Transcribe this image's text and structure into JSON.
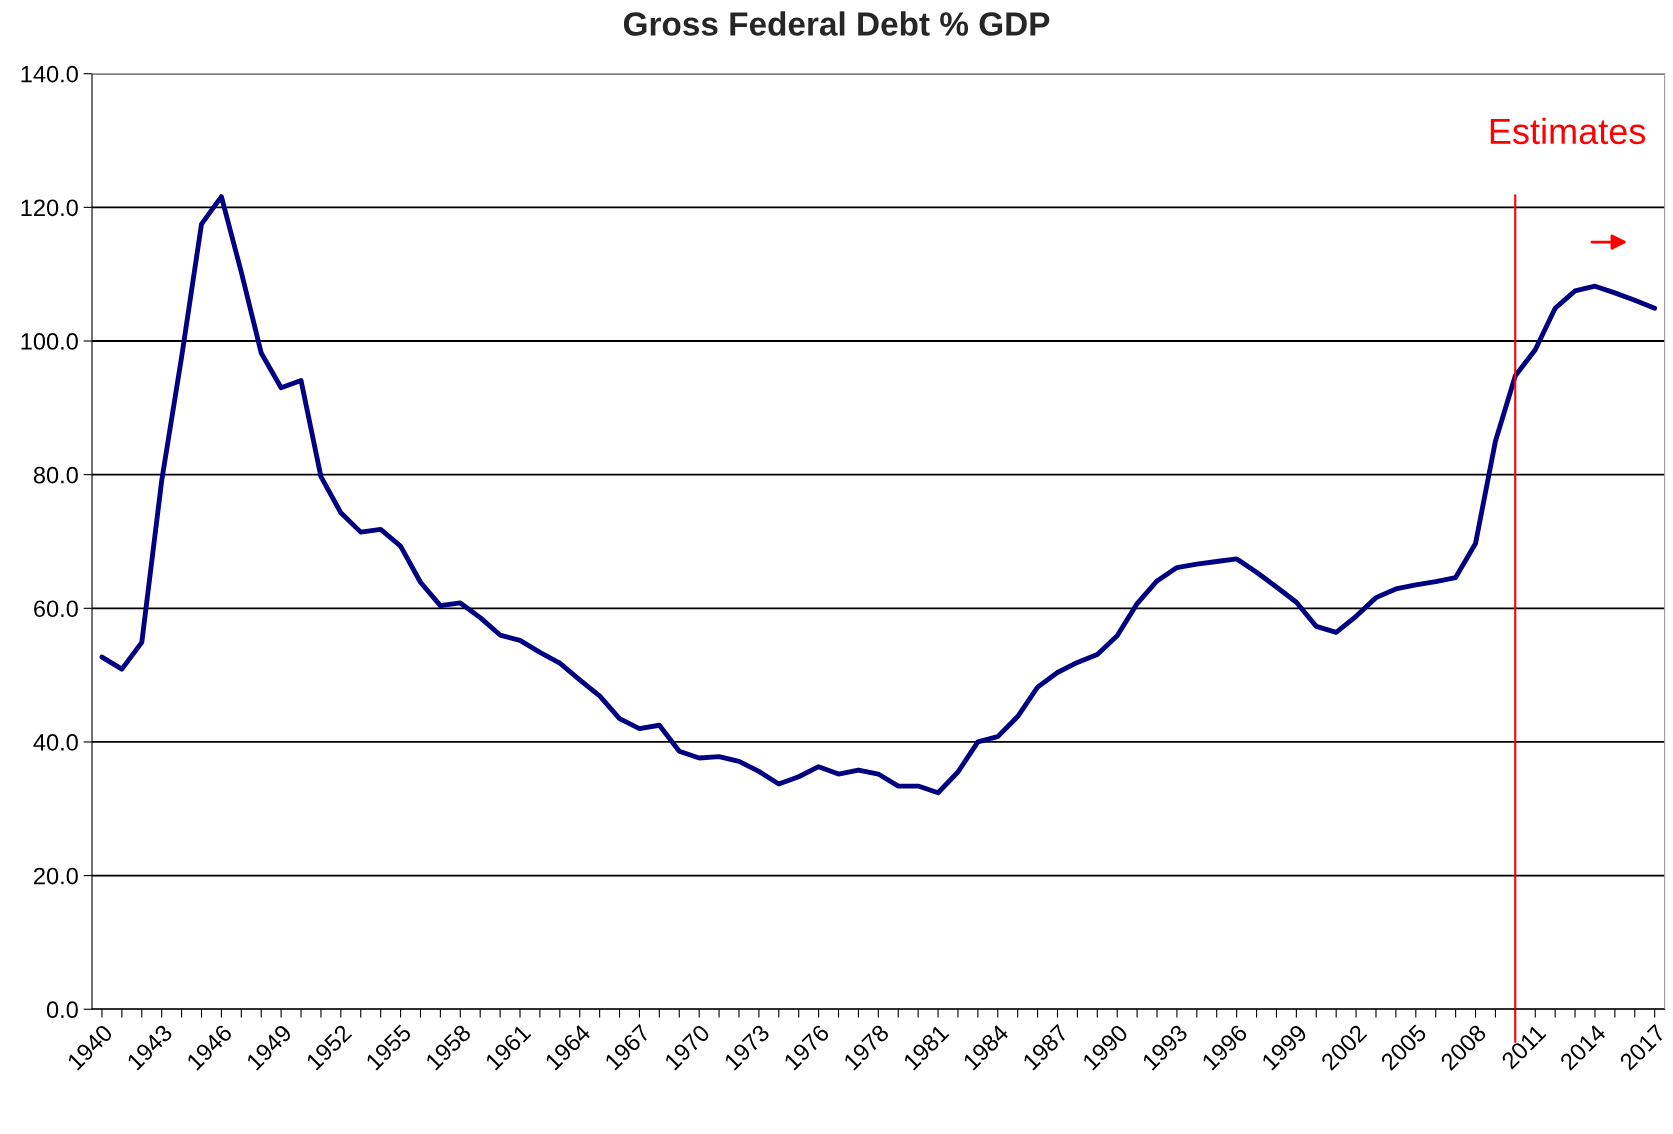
{
  "chart_data": {
    "type": "line",
    "title": "Gross Federal Debt % GDP",
    "categories": [
      "1940",
      null,
      null,
      "1943",
      null,
      null,
      "1946",
      null,
      null,
      "1949",
      null,
      null,
      "1952",
      null,
      null,
      "1955",
      null,
      null,
      "1958",
      null,
      null,
      "1961",
      null,
      null,
      "1964",
      null,
      null,
      "1967",
      null,
      null,
      "1970",
      null,
      null,
      "1973",
      null,
      null,
      "1976",
      null,
      null,
      "1978",
      null,
      null,
      "1981",
      null,
      null,
      "1984",
      null,
      null,
      "1987",
      null,
      null,
      "1990",
      null,
      null,
      "1993",
      null,
      null,
      "1996",
      null,
      null,
      "1999",
      null,
      null,
      "2002",
      null,
      null,
      "2005",
      null,
      null,
      "2008",
      null,
      null,
      "2011",
      null,
      null,
      "2014",
      null,
      null,
      "2017"
    ],
    "series": [
      {
        "color": "#000080",
        "values": [
          52.7,
          50.9,
          54.9,
          79.1,
          97.6,
          117.5,
          121.6,
          110.3,
          98.2,
          93.0,
          94.1,
          79.7,
          74.3,
          71.4,
          71.8,
          69.3,
          63.9,
          60.4,
          60.8,
          58.6,
          56.0,
          55.2,
          53.4,
          51.8,
          49.3,
          46.9,
          43.5,
          42.0,
          42.5,
          38.6,
          37.6,
          37.8,
          37.1,
          35.6,
          33.7,
          34.8,
          36.3,
          35.2,
          35.8,
          35.2,
          33.4,
          33.4,
          32.4,
          35.5,
          40.0,
          40.8,
          43.8,
          48.2,
          50.4,
          51.9,
          53.1,
          55.9,
          60.7,
          64.1,
          66.1,
          66.6,
          67.0,
          67.4,
          65.4,
          63.2,
          60.9,
          57.3,
          56.4,
          58.8,
          61.6,
          62.9,
          63.5,
          64.0,
          64.6,
          69.7,
          85.0,
          94.8,
          98.7,
          104.9,
          107.5,
          108.2,
          107.2,
          106.1,
          104.9
        ]
      }
    ],
    "ylim": [
      0,
      140
    ],
    "yticks": [
      {
        "value": 0,
        "label": "0.0"
      },
      {
        "value": 20,
        "label": "20.0"
      },
      {
        "value": 40,
        "label": "40.0"
      },
      {
        "value": 60,
        "label": "60.0"
      },
      {
        "value": 80,
        "label": "80.0"
      },
      {
        "value": 100,
        "label": "100.0"
      },
      {
        "value": 120,
        "label": "120.0"
      },
      {
        "value": 140,
        "label": "140.0"
      }
    ],
    "grid": "y",
    "marker": "none",
    "line_style": "solid",
    "legend": false,
    "annotations": [
      "Estimates"
    ]
  }
}
